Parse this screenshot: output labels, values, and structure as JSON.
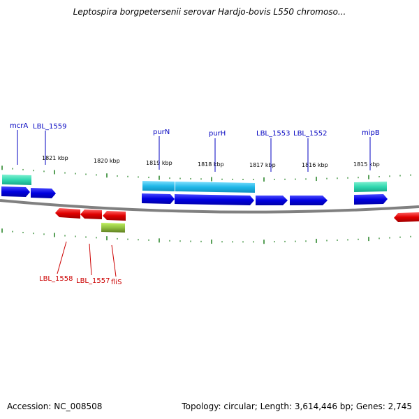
{
  "title": "Leptospira borgpetersenii serovar Hardjo-bovis L550 chromoso...",
  "footer": {
    "accession": "Accession: NC_008508",
    "summary": "Topology: circular; Length: 3,614,446 bp; Genes: 2,745"
  },
  "colors": {
    "forward_gene": "#0000e0",
    "forward_cds_light": "#20b8e8",
    "forward_cds_teal": "#30d8b0",
    "reverse_gene": "#e00000",
    "reverse_rna": "#90c040",
    "backbone": "#808080",
    "tick": "#208020",
    "top_label": "#0000c0",
    "bottom_label": "#cc0000"
  },
  "kbp_labels": [
    "1821 kbp",
    "1820 kbp",
    "1819 kbp",
    "1818 kbp",
    "1817 kbp",
    "1816 kbp",
    "1815 kbp"
  ],
  "top_gene_labels": [
    "mcrA",
    "LBL_1559",
    "purN",
    "purH",
    "LBL_1553",
    "LBL_1552",
    "mipB"
  ],
  "bottom_gene_labels": [
    "LBL_1558",
    "LBL_1557",
    "fliS"
  ]
}
